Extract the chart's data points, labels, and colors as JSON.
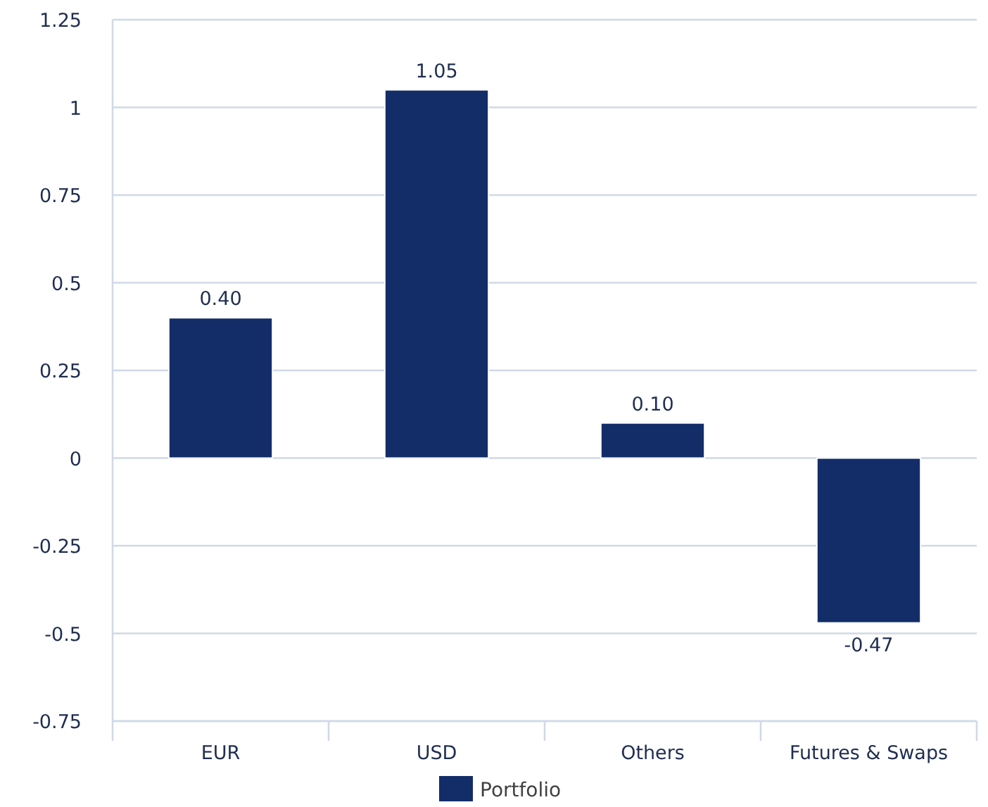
{
  "chart_data": {
    "type": "bar",
    "categories": [
      "EUR",
      "USD",
      "Others",
      "Futures & Swaps"
    ],
    "series": [
      {
        "name": "Portfolio",
        "color": "#132d69",
        "values": [
          0.4,
          1.05,
          0.1,
          -0.47
        ],
        "value_labels": [
          "0.40",
          "1.05",
          "0.10",
          "-0.47"
        ]
      }
    ],
    "ylim": [
      -0.75,
      1.25
    ],
    "yticks": [
      1.25,
      1,
      0.75,
      0.5,
      0.25,
      0,
      -0.25,
      -0.5,
      -0.75
    ],
    "grid": "y",
    "legend": "bottom"
  }
}
